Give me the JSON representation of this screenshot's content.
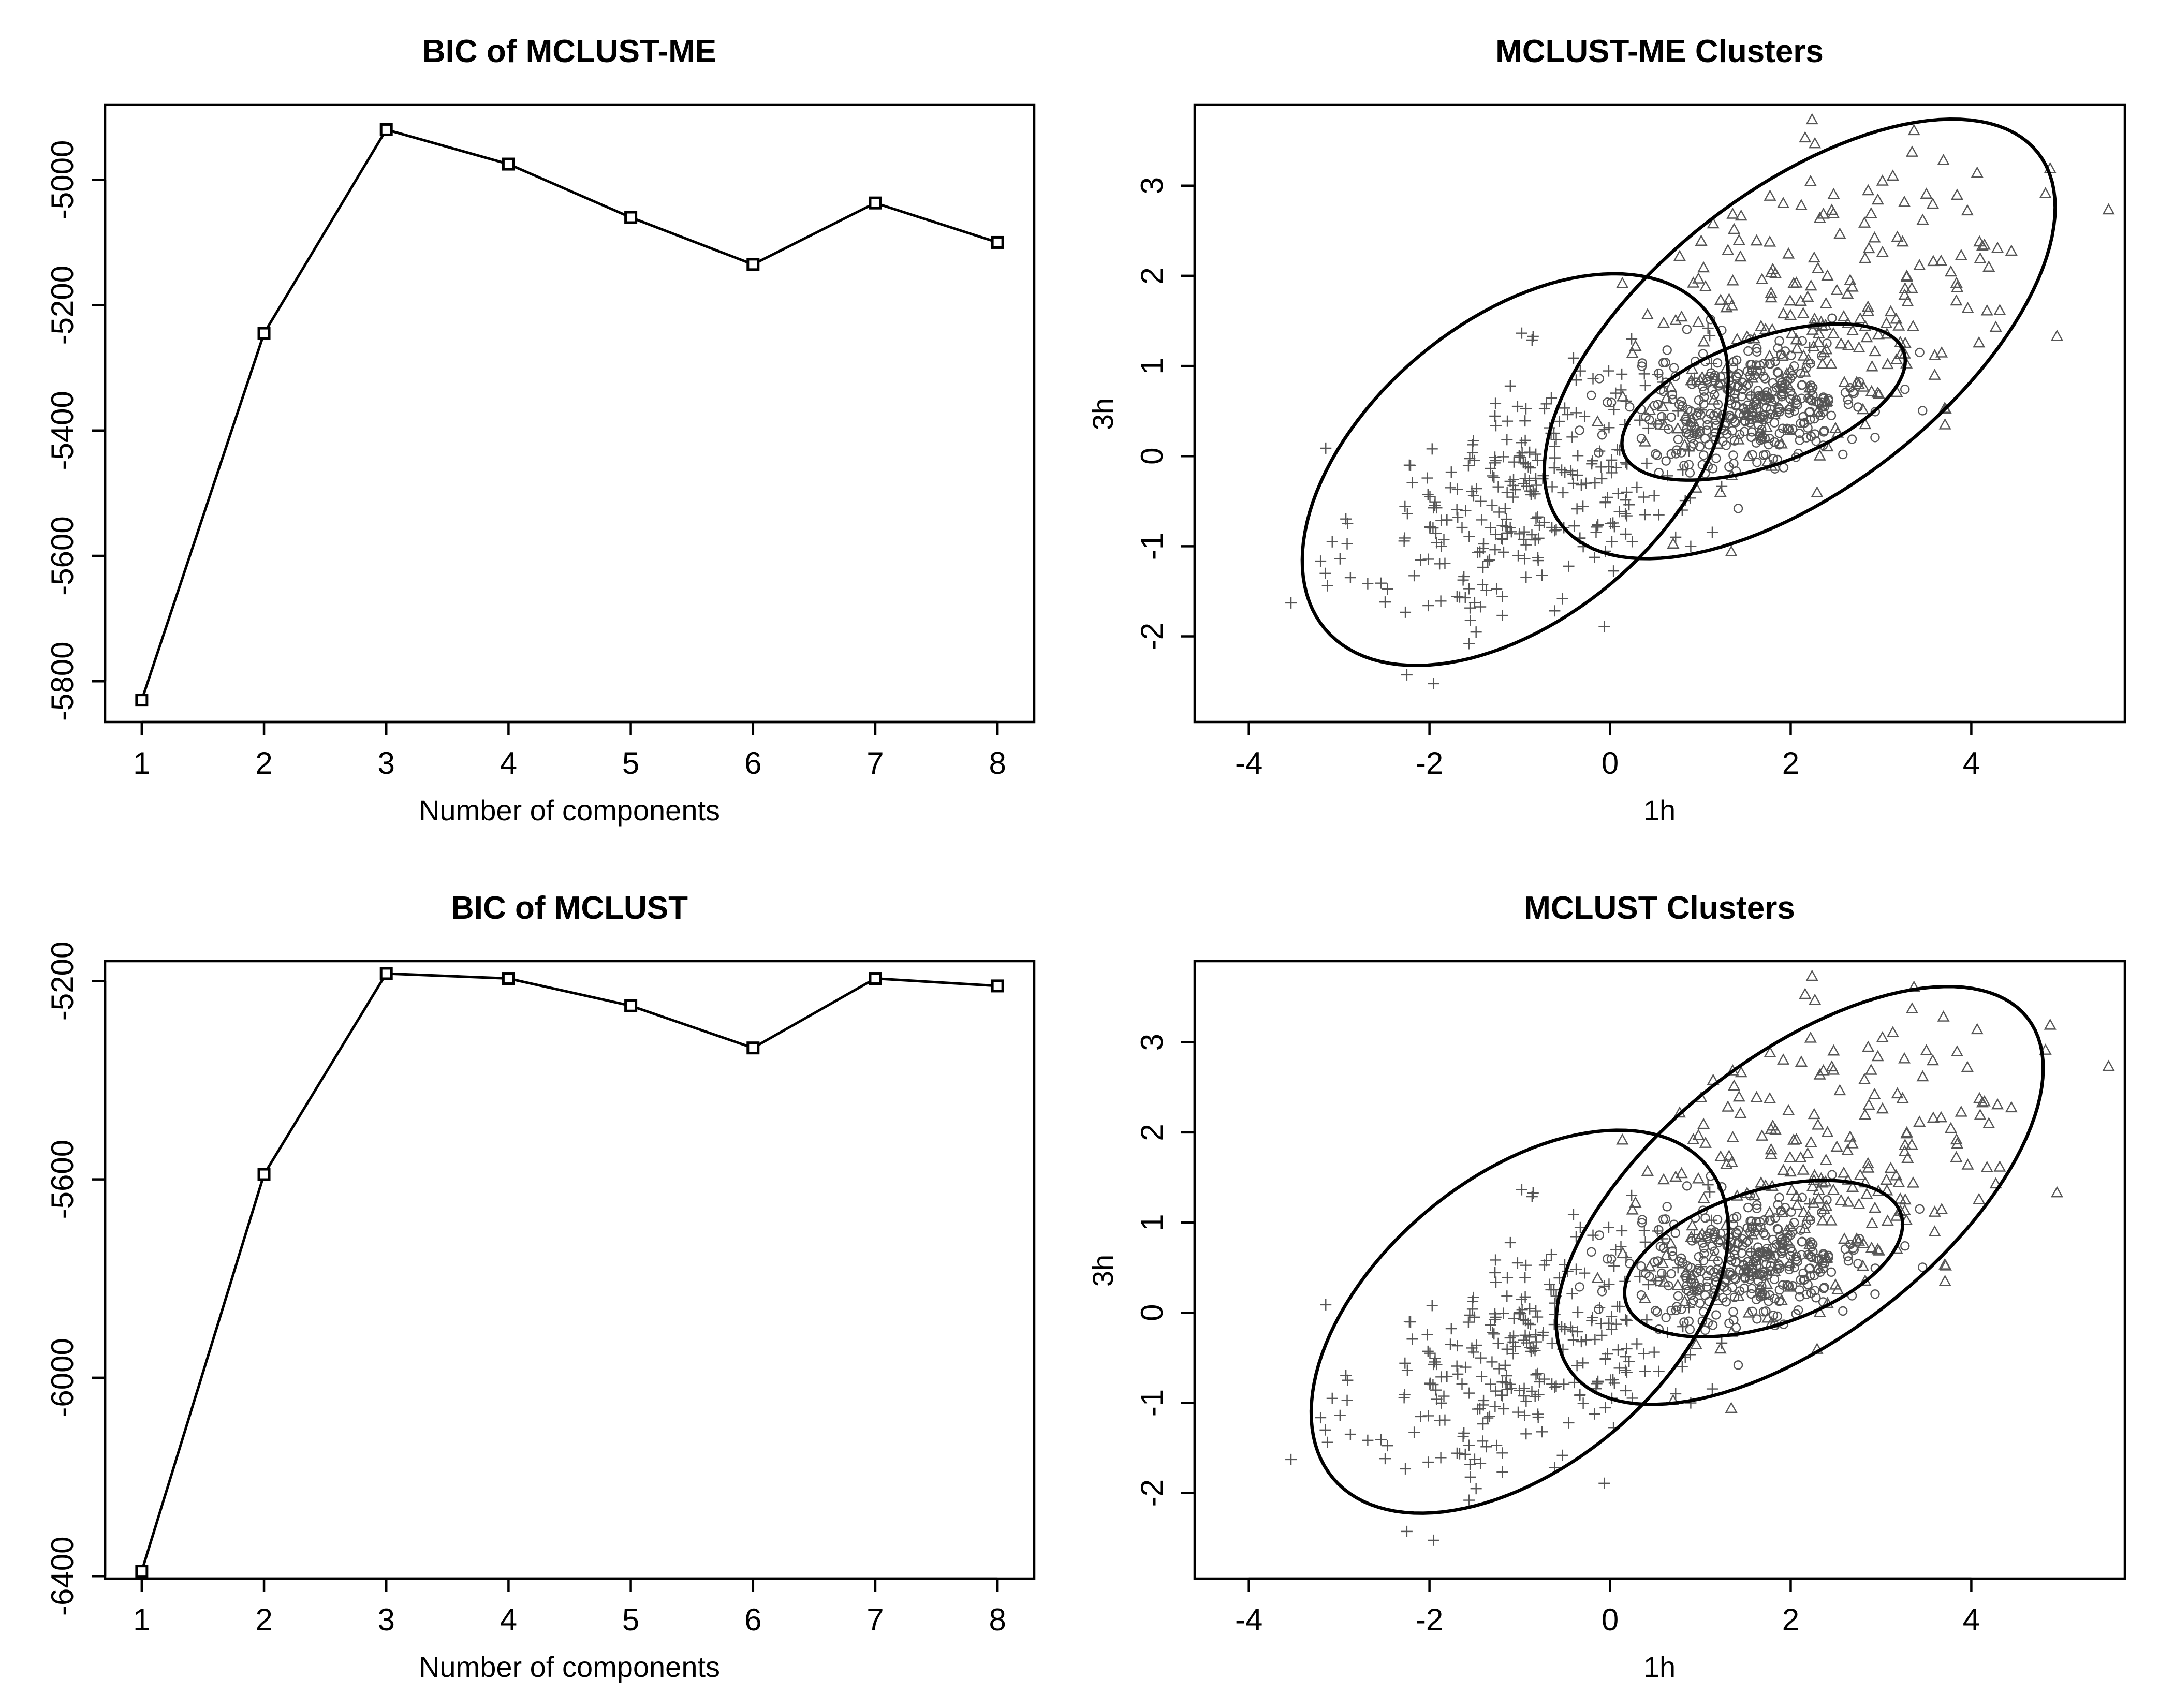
{
  "chart_data": [
    {
      "type": "line",
      "title": "BIC of MCLUST-ME",
      "xlabel": "Number of components",
      "ylabel": "",
      "x": [
        1,
        2,
        3,
        4,
        5,
        6,
        7,
        8
      ],
      "values": [
        -5830,
        -5245,
        -4920,
        -4975,
        -5060,
        -5135,
        -5037,
        -5100
      ],
      "xlim": [
        0.7,
        8.3
      ],
      "ylim": [
        -5865,
        -4880
      ],
      "xticks": [
        1,
        2,
        3,
        4,
        5,
        6,
        7,
        8
      ],
      "yticks": [
        -5800,
        -5600,
        -5400,
        -5200,
        -5000
      ],
      "marker": "open-square",
      "grid": false
    },
    {
      "type": "scatter",
      "title": "MCLUST-ME Clusters",
      "xlabel": "1h",
      "ylabel": "3h",
      "xlim": [
        -4.6,
        5.7
      ],
      "ylim": [
        -2.95,
        3.9
      ],
      "xticks": [
        -4,
        -2,
        0,
        2,
        4
      ],
      "yticks": [
        -2,
        -1,
        0,
        1,
        2,
        3
      ],
      "grid": false,
      "markers": [
        "plus",
        "circle",
        "triangle"
      ],
      "ellipses": [
        {
          "cx": -1.05,
          "cy": -0.15,
          "a": 2.75,
          "b": 1.65,
          "angle_deg": 40
        },
        {
          "cx": 1.7,
          "cy": 0.6,
          "a": 1.65,
          "b": 0.7,
          "angle_deg": 20
        },
        {
          "cx": 2.1,
          "cy": 1.3,
          "a": 3.35,
          "b": 1.65,
          "angle_deg": 38
        }
      ]
    },
    {
      "type": "line",
      "title": "BIC of MCLUST",
      "xlabel": "Number of components",
      "ylabel": "",
      "x": [
        1,
        2,
        3,
        4,
        5,
        6,
        7,
        8
      ],
      "values": [
        -6390,
        -5590,
        -5185,
        -5195,
        -5250,
        -5335,
        -5195,
        -5210
      ],
      "xlim": [
        0.7,
        8.3
      ],
      "ylim": [
        -6405,
        -5160
      ],
      "xticks": [
        1,
        2,
        3,
        4,
        5,
        6,
        7,
        8
      ],
      "yticks": [
        -6400,
        -6000,
        -5600,
        -5200
      ],
      "marker": "open-square",
      "grid": false
    },
    {
      "type": "scatter",
      "title": "MCLUST Clusters",
      "xlabel": "1h",
      "ylabel": "3h",
      "xlim": [
        -4.6,
        5.7
      ],
      "ylim": [
        -2.95,
        3.9
      ],
      "xticks": [
        -4,
        -2,
        0,
        2,
        4
      ],
      "yticks": [
        -2,
        -1,
        0,
        1,
        2,
        3
      ],
      "grid": false,
      "markers": [
        "plus",
        "circle",
        "triangle"
      ],
      "ellipses": [
        {
          "cx": -1.0,
          "cy": -0.1,
          "a": 2.7,
          "b": 1.6,
          "angle_deg": 40
        },
        {
          "cx": 1.7,
          "cy": 0.6,
          "a": 1.6,
          "b": 0.75,
          "angle_deg": 18
        },
        {
          "cx": 2.1,
          "cy": 1.3,
          "a": 3.2,
          "b": 1.55,
          "angle_deg": 38
        }
      ]
    }
  ]
}
